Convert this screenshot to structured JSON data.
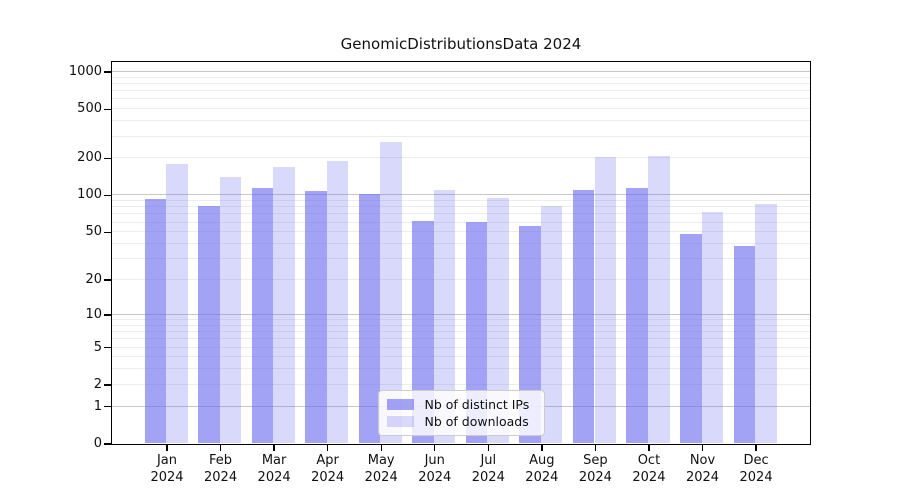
{
  "chart_data": {
    "type": "bar",
    "title": "GenomicDistributionsData 2024",
    "categories": [
      "Jan\n2024",
      "Feb\n2024",
      "Mar\n2024",
      "Apr\n2024",
      "May\n2024",
      "Jun\n2024",
      "Jul\n2024",
      "Aug\n2024",
      "Sep\n2024",
      "Oct\n2024",
      "Nov\n2024",
      "Dec\n2024"
    ],
    "series": [
      {
        "name": "Nb of distinct IPs",
        "color": "rgba(102,102,240,0.60)",
        "values": [
          92,
          82,
          113,
          107,
          101,
          61,
          60,
          56,
          109,
          115,
          48,
          38
        ]
      },
      {
        "name": "Nb of downloads",
        "color": "rgba(102,102,240,0.25)",
        "values": [
          180,
          140,
          170,
          190,
          268,
          110,
          95,
          82,
          202,
          209,
          72,
          84
        ]
      }
    ],
    "yscale": "log1p",
    "y_ticks": [
      0,
      1,
      2,
      5,
      10,
      20,
      50,
      100,
      200,
      500,
      1000
    ],
    "ylim": [
      0,
      1200
    ],
    "grid": "horizontal",
    "legend_position": "lower center"
  },
  "colors": {
    "major_grid": "#c7c7c7",
    "minor_grid": "#ededed",
    "spine": "#000000",
    "tick": "#000000",
    "background": "#ffffff"
  }
}
